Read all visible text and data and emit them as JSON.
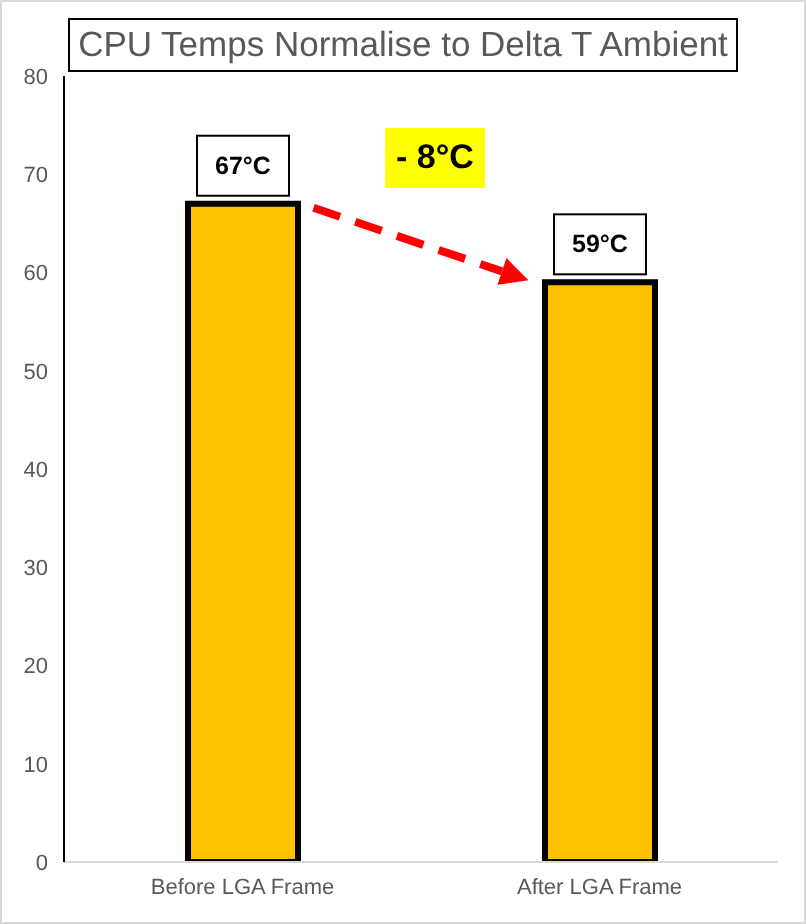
{
  "chart_data": {
    "type": "bar",
    "title": "CPU Temps Normalise to Delta T Ambient",
    "categories": [
      "Before LGA Frame",
      "After LGA Frame"
    ],
    "values": [
      67,
      59
    ],
    "color": "#ffc000",
    "value_labels": [
      "67°C",
      "59°C"
    ],
    "annotations": [
      "- 8°C"
    ],
    "ylim": [
      0,
      80
    ],
    "yticks": [
      0,
      10,
      20,
      30,
      40,
      50,
      60,
      70,
      80
    ]
  }
}
